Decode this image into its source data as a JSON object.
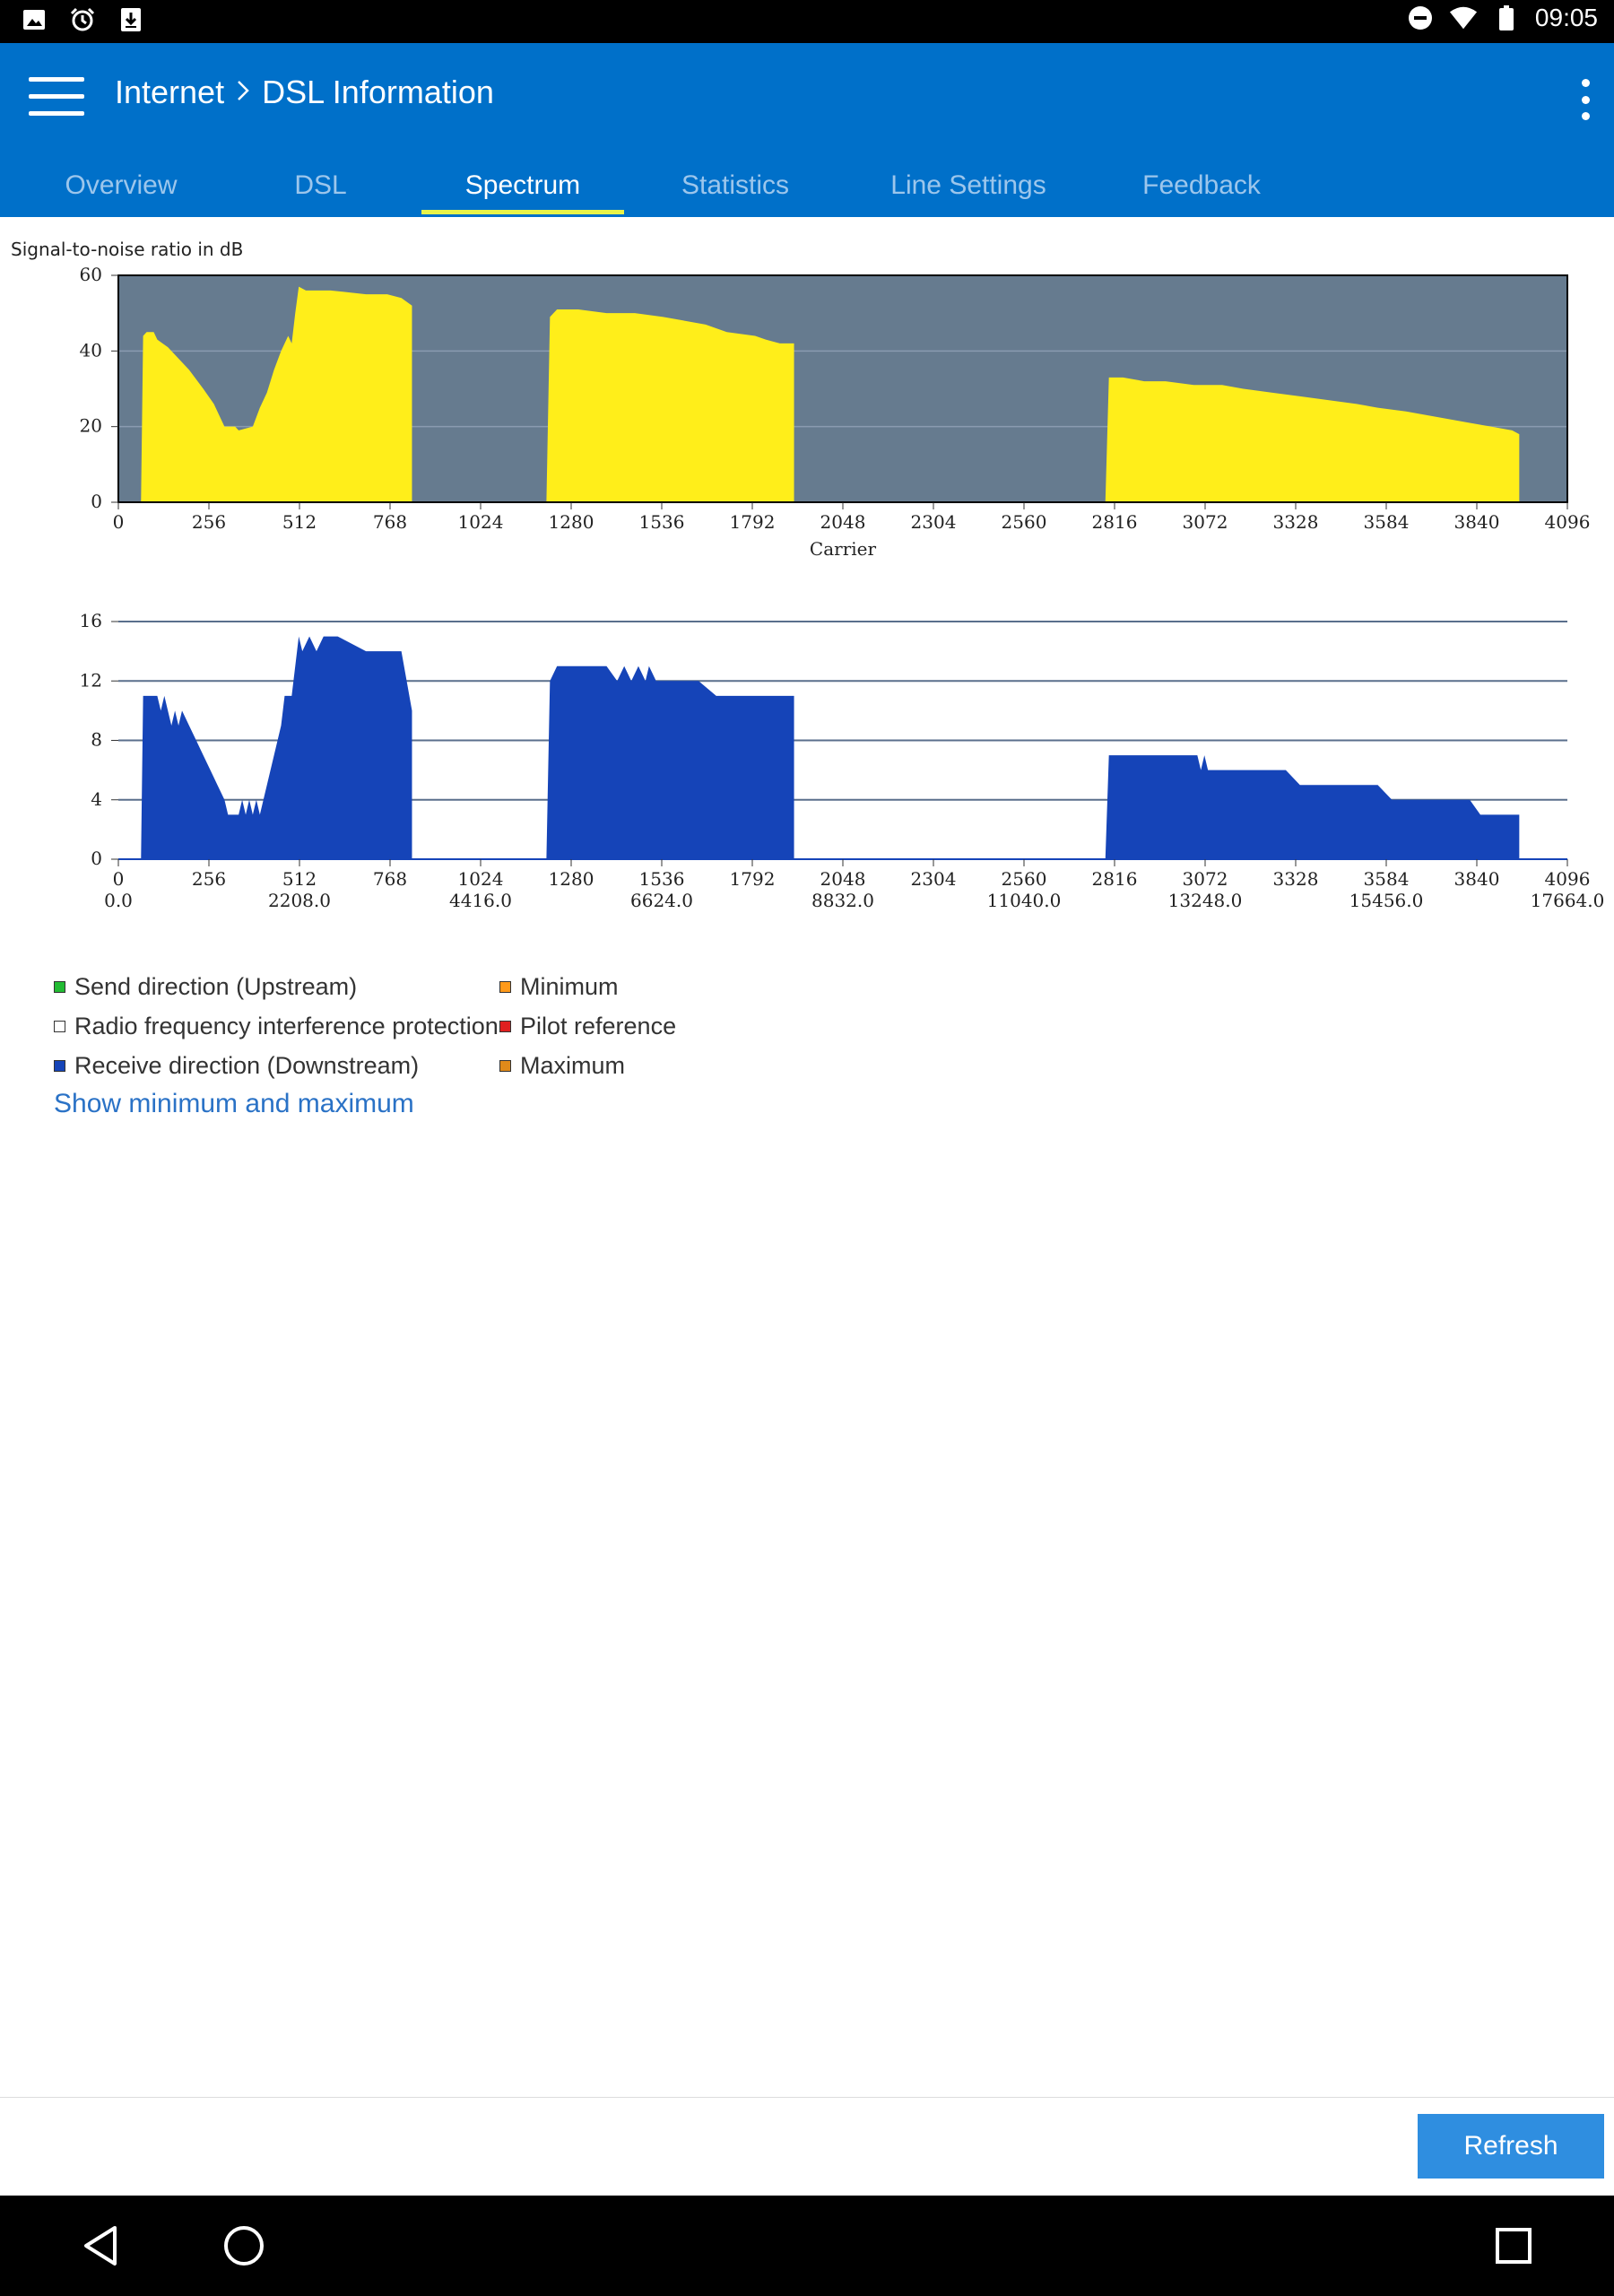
{
  "status_bar": {
    "icons_left": [
      "image-icon",
      "alarm-icon",
      "download-icon"
    ],
    "icons_right": [
      "do-not-disturb-icon",
      "wifi-icon",
      "battery-icon"
    ],
    "time": "09:05"
  },
  "header": {
    "breadcrumb_parent": "Internet",
    "breadcrumb_current": "DSL Information"
  },
  "tabs": [
    {
      "label": "Overview"
    },
    {
      "label": "DSL"
    },
    {
      "label": "Spectrum",
      "active": true
    },
    {
      "label": "Statistics"
    },
    {
      "label": "Line Settings"
    },
    {
      "label": "Feedback"
    }
  ],
  "colors": {
    "accent": "#0070c9",
    "tab_indicator": "#e8f34a",
    "snr_fill": "#ffee1a",
    "snr_background": "#667b8f",
    "bits_fill": "#1544b8",
    "refresh_button": "#2f8ee0"
  },
  "chart_data": [
    {
      "type": "area",
      "title": "Signal-to-noise ratio in dB",
      "xlabel": "Carrier",
      "xlim": [
        0,
        4096
      ],
      "ylim": [
        0,
        60
      ],
      "xticks": [
        "0",
        "256",
        "512",
        "768",
        "1024",
        "1280",
        "1536",
        "1792",
        "2048",
        "2304",
        "2560",
        "2816",
        "3072",
        "3328",
        "3584",
        "3840",
        "4096"
      ],
      "yticks": [
        "0",
        "20",
        "40",
        "60"
      ],
      "series": [
        {
          "x": [
            64,
            70,
            80,
            100,
            110,
            140,
            170,
            200,
            240,
            270,
            290,
            300,
            330,
            340,
            380,
            400,
            420,
            440,
            460,
            480,
            490,
            500,
            510,
            530,
            600,
            700,
            760,
            800,
            830
          ],
          "y": [
            0,
            44,
            45,
            45,
            43,
            41,
            38,
            35,
            30,
            26,
            22,
            20,
            20,
            19,
            20,
            25,
            29,
            35,
            40,
            44,
            42,
            50,
            57,
            56,
            56,
            55,
            55,
            54,
            52
          ]
        },
        {
          "x": [
            1210,
            1220,
            1240,
            1300,
            1380,
            1460,
            1540,
            1600,
            1660,
            1720,
            1800,
            1830,
            1870,
            1910
          ],
          "y": [
            0,
            49,
            51,
            51,
            50,
            50,
            49,
            48,
            47,
            45,
            44,
            43,
            42,
            42
          ]
        },
        {
          "x": [
            2790,
            2800,
            2840,
            2900,
            2960,
            3040,
            3120,
            3180,
            3260,
            3340,
            3420,
            3500,
            3560,
            3640,
            3700,
            3760,
            3820,
            3880,
            3940,
            3960
          ],
          "y": [
            0,
            33,
            33,
            32,
            32,
            31,
            31,
            30,
            29,
            28,
            27,
            26,
            25,
            24,
            23,
            22,
            21,
            20,
            19,
            18
          ]
        }
      ]
    },
    {
      "type": "area",
      "xlim": [
        0,
        4096
      ],
      "ylim": [
        0,
        16
      ],
      "xticks": [
        "0",
        "256",
        "512",
        "768",
        "1024",
        "1280",
        "1536",
        "1792",
        "2048",
        "2304",
        "2560",
        "2816",
        "3072",
        "3328",
        "3584",
        "3840",
        "4096"
      ],
      "x_secondary_ticks": [
        "0.0",
        "2208.0",
        "4416.0",
        "6624.0",
        "8832.0",
        "11040.0",
        "13248.0",
        "15456.0",
        "17664.0"
      ],
      "yticks": [
        "0",
        "4",
        "8",
        "12",
        "16"
      ],
      "series": [
        {
          "x": [
            64,
            70,
            110,
            120,
            130,
            150,
            160,
            170,
            180,
            200,
            220,
            240,
            260,
            280,
            300,
            310,
            340,
            350,
            360,
            370,
            380,
            390,
            400,
            420,
            440,
            460,
            470,
            490,
            500,
            510,
            520,
            540,
            560,
            580,
            620,
            700,
            760,
            800,
            830
          ],
          "y": [
            0,
            11,
            11,
            10,
            11,
            9,
            10,
            9,
            10,
            9,
            8,
            7,
            6,
            5,
            4,
            3,
            3,
            4,
            3,
            4,
            3,
            4,
            3,
            5,
            7,
            9,
            11,
            11,
            13,
            15,
            14,
            15,
            14,
            15,
            15,
            14,
            14,
            14,
            10
          ]
        },
        {
          "x": [
            1210,
            1220,
            1240,
            1380,
            1410,
            1430,
            1450,
            1470,
            1490,
            1500,
            1520,
            1560,
            1640,
            1690,
            1720,
            1800,
            1870,
            1910
          ],
          "y": [
            0,
            12,
            13,
            13,
            12,
            13,
            12,
            13,
            12,
            13,
            12,
            12,
            12,
            11,
            11,
            11,
            11,
            11
          ]
        },
        {
          "x": [
            2790,
            2800,
            2840,
            3000,
            3050,
            3060,
            3070,
            3080,
            3120,
            3300,
            3340,
            3560,
            3600,
            3820,
            3850,
            3960
          ],
          "y": [
            0,
            7,
            7,
            7,
            7,
            6,
            7,
            6,
            6,
            6,
            5,
            5,
            4,
            4,
            3,
            3
          ]
        }
      ]
    }
  ],
  "legend": {
    "col1": [
      {
        "label": "Send direction (Upstream)",
        "color": "#22bb33"
      },
      {
        "label": "Radio frequency interference protection",
        "color": "#ffffff"
      },
      {
        "label": "Receive direction (Downstream)",
        "color": "#1544b8"
      }
    ],
    "col2": [
      {
        "label": "Minimum",
        "color": "#ff9a1a"
      },
      {
        "label": "Pilot reference",
        "color": "#e02020"
      },
      {
        "label": "Maximum",
        "color": "#e08a1a"
      }
    ]
  },
  "show_min_max_link": "Show minimum and maximum",
  "footer": {
    "refresh_label": "Refresh"
  },
  "nav_bar": {
    "icons": [
      "back-icon",
      "home-icon",
      "recents-icon"
    ]
  }
}
